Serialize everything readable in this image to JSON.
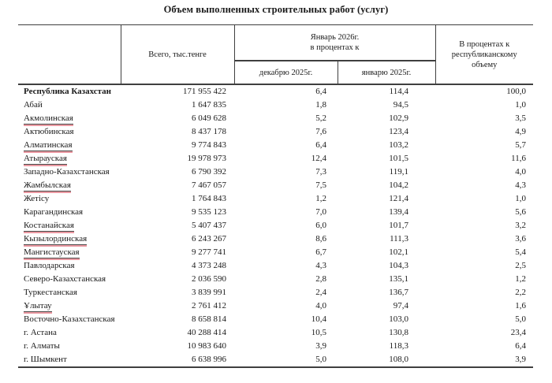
{
  "title": "Объем выполненных строительных работ (услуг)",
  "colors": {
    "border": "#3f3f3f",
    "text": "#1a1a1a",
    "underline-pink": "#eb99a2"
  },
  "table": {
    "headers": {
      "region": "",
      "total": "Всего, тыс.тенге",
      "group_line1": "Январь 2026г.",
      "group_line2": "в процентах к",
      "sub_december": "декабрю 2025г.",
      "sub_january": "январю 2025г.",
      "share": "В процентах к республиканскому объему"
    },
    "rows": [
      {
        "region": "Республика Казахстан",
        "bold": true,
        "underline": false,
        "total": "171 955 422",
        "to_december": "6,4",
        "to_january": "114,4",
        "share": "100,0"
      },
      {
        "region": "Абай",
        "bold": false,
        "underline": false,
        "total": "1 647 835",
        "to_december": "1,8",
        "to_january": "94,5",
        "share": "1,0"
      },
      {
        "region": "Акмолинская",
        "bold": false,
        "underline": true,
        "total": "6 049 628",
        "to_december": "5,2",
        "to_january": "102,9",
        "share": "3,5"
      },
      {
        "region": "Актюбинская",
        "bold": false,
        "underline": false,
        "total": "8 437 178",
        "to_december": "7,6",
        "to_january": "123,4",
        "share": "4,9"
      },
      {
        "region": "Алматинская",
        "bold": false,
        "underline": true,
        "total": "9 774 843",
        "to_december": "6,4",
        "to_january": "103,2",
        "share": "5,7"
      },
      {
        "region": "Атырауская",
        "bold": false,
        "underline": true,
        "total": "19 978 973",
        "to_december": "12,4",
        "to_january": "101,5",
        "share": "11,6"
      },
      {
        "region": "Западно-Казахстанская",
        "bold": false,
        "underline": false,
        "total": "6 790 392",
        "to_december": "7,3",
        "to_january": "119,1",
        "share": "4,0"
      },
      {
        "region": "Жамбылская",
        "bold": false,
        "underline": true,
        "total": "7 467 057",
        "to_december": "7,5",
        "to_january": "104,2",
        "share": "4,3"
      },
      {
        "region": "Жетісу",
        "bold": false,
        "underline": false,
        "total": "1 764 843",
        "to_december": "1,2",
        "to_january": "121,4",
        "share": "1,0"
      },
      {
        "region": "Карагандинская",
        "bold": false,
        "underline": false,
        "total": "9 535 123",
        "to_december": "7,0",
        "to_january": "139,4",
        "share": "5,6"
      },
      {
        "region": "Костанайская",
        "bold": false,
        "underline": true,
        "total": "5 407 437",
        "to_december": "6,0",
        "to_january": "101,7",
        "share": "3,2"
      },
      {
        "region": "Кызылординская",
        "bold": false,
        "underline": true,
        "total": "6 243 267",
        "to_december": "8,6",
        "to_january": "111,3",
        "share": "3,6"
      },
      {
        "region": "Мангистауская",
        "bold": false,
        "underline": true,
        "total": "9 277 741",
        "to_december": "6,7",
        "to_january": "102,1",
        "share": "5,4"
      },
      {
        "region": "Павлодарская",
        "bold": false,
        "underline": false,
        "total": "4 373 248",
        "to_december": "4,3",
        "to_january": "104,3",
        "share": "2,5"
      },
      {
        "region": "Северо-Казахстанская",
        "bold": false,
        "underline": false,
        "total": "2 036 590",
        "to_december": "2,8",
        "to_january": "135,1",
        "share": "1,2"
      },
      {
        "region": "Туркестанская",
        "bold": false,
        "underline": false,
        "total": "3 839 991",
        "to_december": "2,4",
        "to_january": "136,7",
        "share": "2,2"
      },
      {
        "region": "Ұлытау",
        "bold": false,
        "underline": true,
        "total": "2 761 412",
        "to_december": "4,0",
        "to_january": "97,4",
        "share": "1,6"
      },
      {
        "region": "Восточно-Казахстанская",
        "bold": false,
        "underline": false,
        "total": "8 658 814",
        "to_december": "10,4",
        "to_january": "103,0",
        "share": "5,0"
      },
      {
        "region": "г. Астана",
        "bold": false,
        "underline": false,
        "total": "40 288 414",
        "to_december": "10,5",
        "to_january": "130,8",
        "share": "23,4"
      },
      {
        "region": "г. Алматы",
        "bold": false,
        "underline": false,
        "total": "10 983 640",
        "to_december": "3,9",
        "to_january": "118,3",
        "share": "6,4"
      },
      {
        "region": "г. Шымкент",
        "bold": false,
        "underline": false,
        "total": "6 638 996",
        "to_december": "5,0",
        "to_january": "108,0",
        "share": "3,9"
      }
    ]
  }
}
